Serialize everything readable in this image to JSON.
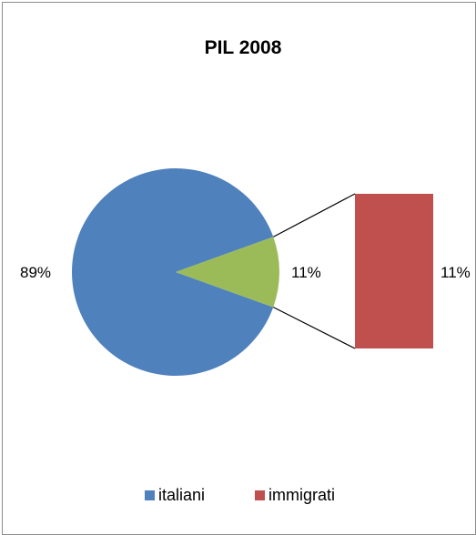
{
  "chart_data": {
    "type": "pie",
    "subtype": "pie-of-pie",
    "title": "PIL 2008",
    "categories": [
      "italiani",
      "immigrati"
    ],
    "values": [
      89,
      11
    ],
    "value_labels": [
      "89%",
      "11%"
    ],
    "secondary_values": [
      11
    ],
    "secondary_labels": [
      "11%"
    ],
    "legend": {
      "placement": "bottom",
      "entries": [
        "italiani",
        "immigrati"
      ]
    },
    "colors": {
      "italiani": "#4f81bd",
      "immigrati_main": "#9bbb59",
      "immigrati_secondary": "#c0504d"
    }
  }
}
